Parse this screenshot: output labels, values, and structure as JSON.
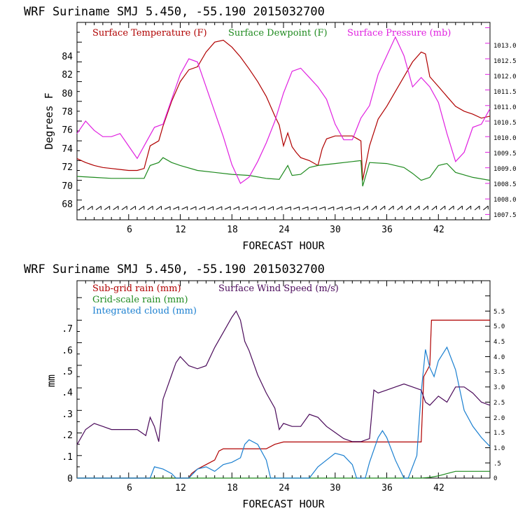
{
  "chart_data": [
    {
      "type": "line",
      "title": "WRF   Suriname SMJ   5.450, -55.190  2015032700",
      "xlabel": "FORECAST HOUR",
      "ylabel": "Degrees F",
      "xlim": [
        0,
        48
      ],
      "ylim": [
        66,
        86
      ],
      "y2lim": [
        1007.33,
        1013.67
      ],
      "x_ticks": [
        "6",
        "12",
        "18",
        "24",
        "30",
        "36",
        "42"
      ],
      "y_ticks": [
        "68",
        "70",
        "72",
        "74",
        "76",
        "78",
        "80",
        "82",
        "84"
      ],
      "y2_ticks": [
        "1007.5",
        "1008.0",
        "1008.5",
        "1009.0",
        "1009.5",
        "1010.0",
        "1010.5",
        "1011.0",
        "1011.5",
        "1012.0",
        "1012.5",
        "1013.0"
      ],
      "wind_barbs": "row of wind barbs along y=67.5",
      "colors": {
        "temperature": "#b00000",
        "dewpoint": "#1e8a1e",
        "pressure": "#e020e0"
      },
      "series": [
        {
          "name": "Surface Temperature (F)",
          "axis": "left",
          "x": [
            0,
            1,
            2,
            3,
            4,
            5,
            6,
            7,
            7.8,
            8.5,
            9.5,
            10,
            11,
            12,
            13,
            14,
            15,
            16,
            17,
            18,
            19,
            20,
            21,
            22,
            23,
            23.5,
            24,
            24.5,
            25,
            25.5,
            26,
            27,
            28,
            28.5,
            29,
            30,
            31,
            32,
            33,
            33.2,
            34,
            35,
            36,
            37,
            38,
            39,
            40,
            40.5,
            41,
            42,
            43,
            44,
            45,
            46,
            47,
            48
          ],
          "values": [
            72.2,
            71.8,
            71.5,
            71.3,
            71.2,
            71.1,
            71.0,
            71.0,
            71.2,
            73.5,
            74.0,
            75.5,
            78.0,
            80.0,
            81.2,
            81.5,
            83.0,
            84.0,
            84.2,
            83.5,
            82.5,
            81.3,
            80.0,
            78.5,
            76.5,
            75.6,
            73.5,
            74.8,
            73.4,
            72.8,
            72.3,
            72.0,
            71.5,
            73.2,
            74.2,
            74.5,
            74.5,
            74.5,
            74.0,
            70.0,
            73.5,
            76.2,
            77.5,
            79.0,
            80.5,
            82.0,
            83.0,
            82.8,
            80.5,
            79.5,
            78.5,
            77.5,
            77.0,
            76.7,
            76.3,
            76.5
          ]
        },
        {
          "name": "Surface Dewpoint (F)",
          "axis": "left",
          "x": [
            0,
            2,
            4,
            6,
            7.8,
            8.5,
            9.5,
            10,
            11,
            12,
            14,
            16,
            18,
            20,
            22,
            23.5,
            24.5,
            25,
            26,
            27,
            28,
            30,
            32,
            33,
            33.2,
            34,
            36,
            38,
            39,
            40,
            41,
            42,
            43,
            44,
            46,
            48
          ],
          "values": [
            70.4,
            70.3,
            70.2,
            70.2,
            70.2,
            71.5,
            71.8,
            72.3,
            71.8,
            71.5,
            71.0,
            70.8,
            70.6,
            70.5,
            70.2,
            70.1,
            71.5,
            70.5,
            70.6,
            71.3,
            71.5,
            71.7,
            71.9,
            72.0,
            69.4,
            71.8,
            71.7,
            71.3,
            70.7,
            70.0,
            70.3,
            71.5,
            71.7,
            70.8,
            70.3,
            70.0
          ]
        },
        {
          "name": "Surface Pressure (mb)",
          "axis": "right",
          "x": [
            0,
            1,
            2,
            3,
            4,
            5,
            6,
            7,
            8,
            9,
            10,
            11,
            12,
            13,
            14,
            15,
            16,
            17,
            18,
            19,
            20,
            21,
            22,
            23,
            24,
            25,
            26,
            27,
            28,
            29,
            30,
            31,
            32,
            33,
            34,
            35,
            36,
            37,
            38,
            39,
            40,
            41,
            42,
            43,
            44,
            45,
            46,
            47,
            48
          ],
          "values": [
            1010.1,
            1010.5,
            1010.2,
            1010.0,
            1010.0,
            1010.1,
            1009.7,
            1009.3,
            1009.8,
            1010.3,
            1010.4,
            1011.2,
            1012.0,
            1012.5,
            1012.4,
            1011.6,
            1010.8,
            1010.0,
            1009.1,
            1008.5,
            1008.7,
            1009.2,
            1009.8,
            1010.5,
            1011.4,
            1012.1,
            1012.2,
            1011.9,
            1011.6,
            1011.2,
            1010.4,
            1009.9,
            1009.9,
            1010.6,
            1011.0,
            1012.0,
            1012.6,
            1013.2,
            1012.6,
            1011.6,
            1011.9,
            1011.6,
            1011.1,
            1010.1,
            1009.2,
            1009.5,
            1010.3,
            1010.4,
            1010.9
          ]
        }
      ]
    },
    {
      "type": "line",
      "title": "WRF   Suriname SMJ   5.450, -55.190  2015032700",
      "xlabel": "FORECAST HOUR",
      "ylabel": "mm",
      "xlim": [
        0,
        48
      ],
      "ylim": [
        0,
        0.875
      ],
      "y2lim": [
        0,
        6.5
      ],
      "x_ticks": [
        "6",
        "12",
        "18",
        "24",
        "30",
        "36",
        "42"
      ],
      "y_ticks": [
        "0",
        ".1",
        ".2",
        ".3",
        ".4",
        ".5",
        ".6",
        ".7"
      ],
      "y2_ticks": [
        "0",
        ".5",
        "1.0",
        "1.5",
        "2.0",
        "2.5",
        "3.0",
        "3.5",
        "4.0",
        "4.5",
        "5.0",
        "5.5"
      ],
      "colors": {
        "subgrid": "#b00000",
        "windspeed": "#4a0a5a",
        "gridscale": "#1e8a1e",
        "cloud": "#1a7fd0"
      },
      "series": [
        {
          "name": "Sub-grid rain (mm)",
          "axis": "left",
          "x": [
            0,
            13,
            13.3,
            14,
            15,
            16,
            16.5,
            17,
            20,
            22,
            23,
            24,
            33,
            36,
            38,
            40,
            40.3,
            41,
            41.2,
            48
          ],
          "values": [
            0,
            0,
            0.02,
            0.04,
            0.06,
            0.08,
            0.12,
            0.13,
            0.13,
            0.13,
            0.15,
            0.16,
            0.16,
            0.16,
            0.16,
            0.16,
            0.45,
            0.5,
            0.7,
            0.7
          ]
        },
        {
          "name": "Grid-scale rain (mm)",
          "axis": "left",
          "x": [
            0,
            40,
            41,
            42,
            43,
            44,
            48
          ],
          "values": [
            0,
            0,
            0.003,
            0.01,
            0.02,
            0.03,
            0.03
          ]
        },
        {
          "name": "Integrated cloud (mm)",
          "axis": "left",
          "x": [
            0,
            8.5,
            9,
            10,
            11,
            11.5,
            13,
            13.5,
            14,
            15,
            16,
            17,
            18,
            19,
            19.5,
            20,
            21,
            22,
            22.5,
            27,
            28,
            29,
            30,
            31,
            32,
            32.5,
            33.5,
            34,
            35,
            35.5,
            36,
            37,
            38,
            38.5,
            39.5,
            40,
            40.5,
            41,
            41.5,
            42,
            43,
            44,
            45,
            46,
            47,
            48
          ],
          "values": [
            0,
            0,
            0.05,
            0.04,
            0.02,
            0,
            0,
            0.02,
            0.04,
            0.05,
            0.03,
            0.06,
            0.07,
            0.09,
            0.15,
            0.17,
            0.15,
            0.08,
            0,
            0,
            0.05,
            0.08,
            0.11,
            0.1,
            0.06,
            0,
            0,
            0.07,
            0.18,
            0.21,
            0.18,
            0.08,
            0,
            0,
            0.1,
            0.38,
            0.57,
            0.49,
            0.45,
            0.52,
            0.58,
            0.48,
            0.3,
            0.23,
            0.18,
            0.14
          ]
        },
        {
          "name": "Surface Wind Speed (m/s)",
          "axis": "right",
          "x": [
            0,
            1,
            2,
            3,
            4,
            5,
            6,
            7,
            8,
            8.5,
            9,
            9.5,
            10,
            10.5,
            11,
            11.5,
            12,
            13,
            14,
            15,
            16,
            17,
            18,
            18.5,
            19,
            19.5,
            20,
            21,
            22,
            23,
            23.5,
            24,
            25,
            26,
            27,
            28,
            29,
            30,
            31,
            32,
            33,
            34,
            34.5,
            35,
            36,
            37,
            38,
            39,
            40,
            40.5,
            41,
            42,
            43,
            44,
            45,
            46,
            47,
            48
          ],
          "values": [
            1.1,
            1.6,
            1.8,
            1.7,
            1.6,
            1.6,
            1.6,
            1.6,
            1.4,
            2.0,
            1.7,
            1.2,
            2.6,
            3.0,
            3.4,
            3.8,
            4.0,
            3.7,
            3.6,
            3.7,
            4.3,
            4.8,
            5.3,
            5.5,
            5.2,
            4.5,
            4.2,
            3.4,
            2.8,
            2.3,
            1.6,
            1.8,
            1.7,
            1.7,
            2.1,
            2.0,
            1.7,
            1.5,
            1.3,
            1.2,
            1.2,
            1.3,
            2.9,
            2.8,
            2.9,
            3.0,
            3.1,
            3.0,
            2.9,
            2.5,
            2.4,
            2.7,
            2.5,
            3.0,
            3.0,
            2.8,
            2.5,
            2.4
          ]
        }
      ]
    }
  ]
}
